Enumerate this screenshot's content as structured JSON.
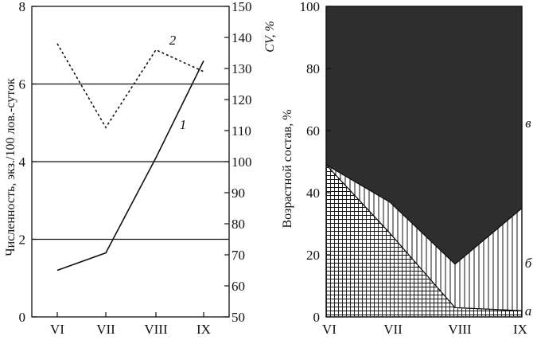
{
  "colors": {
    "ink": "#111111",
    "panel_dark": "#2e2e2e",
    "background": "#ffffff"
  },
  "chart_data": [
    {
      "type": "line",
      "categories": [
        "VI",
        "VII",
        "VIII",
        "IX"
      ],
      "ylabel": "Численность, экз./100 лов.-суток",
      "ylabel_right": "CV, %",
      "ylim": [
        0,
        8
      ],
      "y2lim": [
        50,
        150
      ],
      "y_ticks": [
        "0",
        "2",
        "4",
        "6",
        "8"
      ],
      "y2_ticks": [
        "50",
        "60",
        "70",
        "80",
        "90",
        "100",
        "110",
        "120",
        "130",
        "140",
        "150"
      ],
      "grid": "horizontal at 2, 4, 6",
      "series": [
        {
          "name": "1",
          "axis": "left",
          "style": "solid",
          "values": [
            1.2,
            1.65,
            4.1,
            6.6
          ]
        },
        {
          "name": "2",
          "axis": "right",
          "style": "dashed",
          "values": [
            138,
            111,
            136,
            129
          ]
        }
      ]
    },
    {
      "type": "area",
      "stacked": true,
      "categories": [
        "VI",
        "VII",
        "VIII",
        "IX"
      ],
      "ylabel": "Возрастной состав, %",
      "ylim": [
        0,
        100
      ],
      "y_ticks": [
        "0",
        "20",
        "40",
        "60",
        "80",
        "100"
      ],
      "series": [
        {
          "name": "а",
          "fill": "cross-hatch",
          "values": [
            49,
            27,
            3,
            2
          ]
        },
        {
          "name": "б",
          "fill": "vertical lines",
          "values": [
            0,
            10,
            14,
            33
          ]
        },
        {
          "name": "в",
          "fill": "dark",
          "values": [
            51,
            63,
            83,
            65
          ]
        }
      ]
    }
  ]
}
